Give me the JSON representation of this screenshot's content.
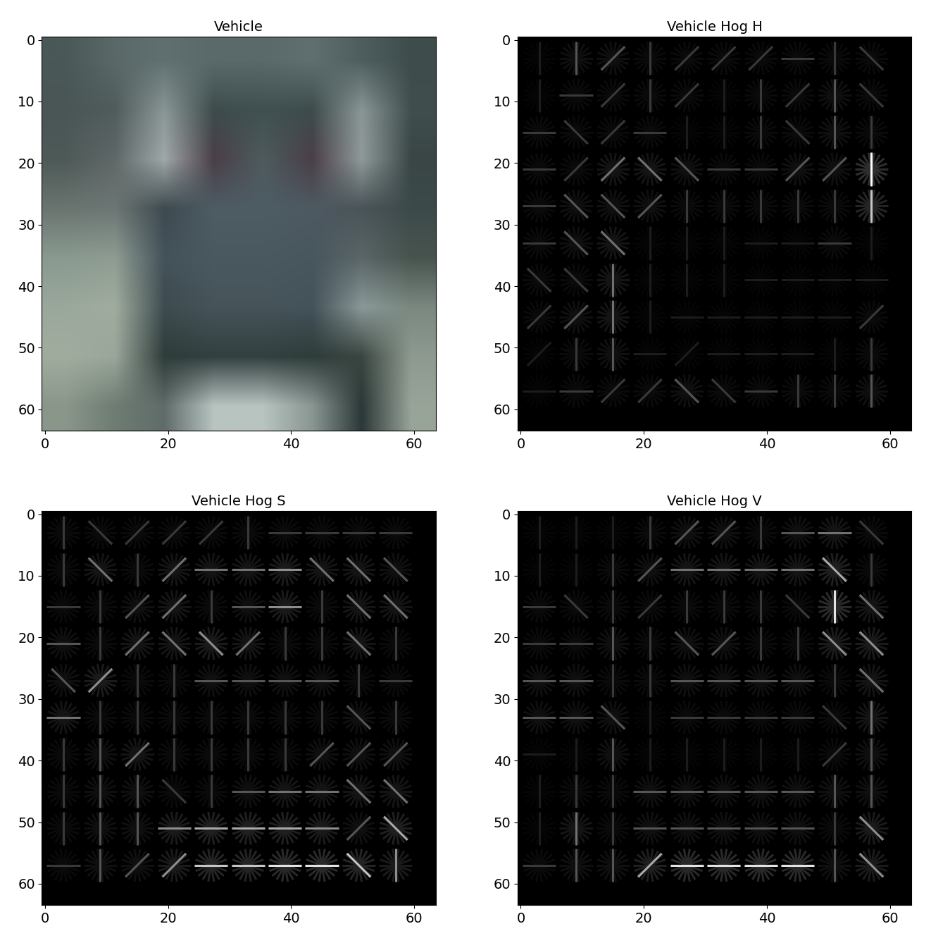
{
  "chart_data": [
    {
      "type": "image",
      "title": "Vehicle",
      "xlim": [
        -0.5,
        63.5
      ],
      "ylim": [
        63.5,
        -0.5
      ],
      "xticks": [
        0,
        20,
        40,
        60
      ],
      "yticks": [
        0,
        10,
        20,
        30,
        40,
        50,
        60
      ],
      "pixels": [
        [
          "#4a5858",
          "#5a6868",
          "#607070",
          "#5a6a6a",
          "#5a6a6a",
          "#607070",
          "#4e5e5e",
          "#3e4c4c"
        ],
        [
          "#4a5656",
          "#505c5c",
          "#8a9696",
          "#3e4c4c",
          "#405050",
          "#3e4c4c",
          "#8a9696",
          "#404e4e"
        ],
        [
          "#4e5a58",
          "#606868",
          "#a0a8a8",
          "#4a3e48",
          "#4e5c5e",
          "#4a3e48",
          "#909a9a",
          "#3a4646"
        ],
        [
          "#6a7470",
          "#6c7674",
          "#3e4a50",
          "#4e5c64",
          "#4e5c64",
          "#4e5a62",
          "#4a5458",
          "#3c4a4a"
        ],
        [
          "#8a9a90",
          "#8e9c92",
          "#44525a",
          "#4a5860",
          "#4a5860",
          "#48565e",
          "#5a6668",
          "#48544e"
        ],
        [
          "#9aa89c",
          "#a0ac9e",
          "#3e4c50",
          "#46545a",
          "#46545a",
          "#44525a",
          "#8a9898",
          "#7a8880"
        ],
        [
          "#a0ac9e",
          "#9aa69a",
          "#2e3c3a",
          "#324040",
          "#324040",
          "#2e3c3a",
          "#3a4640",
          "#8e9a90"
        ],
        [
          "#8a968a",
          "#6e7c72",
          "#606c6a",
          "#b8c4c0",
          "#b8c4c0",
          "#8a9692",
          "#2c3838",
          "#98a498"
        ]
      ]
    },
    {
      "type": "hog",
      "title": "Vehicle Hog H",
      "xlim": [
        -0.5,
        63.5
      ],
      "ylim": [
        63.5,
        -0.5
      ],
      "xticks": [
        0,
        20,
        40,
        60
      ],
      "yticks": [
        0,
        10,
        20,
        30,
        40,
        50,
        60
      ],
      "cell_size": 6,
      "vmin": 0,
      "vmax": 9,
      "angles": [
        [
          90,
          90,
          45,
          90,
          45,
          45,
          45,
          0,
          90,
          135
        ],
        [
          90,
          0,
          45,
          90,
          45,
          90,
          90,
          45,
          90,
          135
        ],
        [
          0,
          135,
          45,
          0,
          90,
          90,
          90,
          135,
          90,
          90
        ],
        [
          0,
          45,
          45,
          135,
          135,
          0,
          0,
          45,
          45,
          90
        ],
        [
          0,
          135,
          135,
          45,
          90,
          90,
          90,
          90,
          90,
          90
        ],
        [
          0,
          135,
          135,
          90,
          90,
          90,
          0,
          0,
          0,
          90
        ],
        [
          135,
          135,
          90,
          90,
          90,
          90,
          0,
          0,
          0,
          0
        ],
        [
          45,
          45,
          90,
          90,
          0,
          0,
          0,
          0,
          0,
          45
        ],
        [
          45,
          90,
          90,
          0,
          45,
          0,
          0,
          0,
          90,
          90
        ],
        [
          0,
          0,
          45,
          45,
          135,
          135,
          0,
          90,
          90,
          90
        ]
      ],
      "strength": [
        [
          1,
          3,
          3,
          2,
          2,
          2,
          2,
          2,
          2,
          2
        ],
        [
          1,
          2,
          2,
          2,
          2,
          1,
          2,
          2,
          3,
          2
        ],
        [
          2,
          2,
          2,
          2,
          1,
          1,
          2,
          2,
          3,
          2
        ],
        [
          2,
          2,
          4,
          4,
          3,
          2,
          2,
          3,
          3,
          9
        ],
        [
          2,
          3,
          3,
          3,
          2,
          2,
          2,
          2,
          2,
          7
        ],
        [
          2,
          3,
          4,
          1,
          1,
          1,
          1,
          1,
          2,
          1
        ],
        [
          2,
          2,
          4,
          1,
          1,
          1,
          1,
          1,
          1,
          1
        ],
        [
          2,
          3,
          4,
          1,
          1,
          1,
          1,
          1,
          1,
          2
        ],
        [
          1,
          2,
          3,
          1,
          1,
          1,
          1,
          1,
          1,
          2
        ],
        [
          1,
          2,
          2,
          2,
          3,
          2,
          2,
          2,
          2,
          3
        ]
      ]
    },
    {
      "type": "hog",
      "title": "Vehicle Hog S",
      "xlim": [
        -0.5,
        63.5
      ],
      "ylim": [
        63.5,
        -0.5
      ],
      "xticks": [
        0,
        20,
        40,
        60
      ],
      "yticks": [
        0,
        10,
        20,
        30,
        40,
        50,
        60
      ],
      "cell_size": 6,
      "vmin": 0,
      "vmax": 9,
      "angles": [
        [
          90,
          135,
          45,
          45,
          45,
          90,
          0,
          0,
          0,
          0
        ],
        [
          90,
          135,
          90,
          45,
          0,
          0,
          0,
          135,
          135,
          135
        ],
        [
          0,
          90,
          45,
          45,
          90,
          0,
          0,
          90,
          135,
          135
        ],
        [
          0,
          90,
          45,
          135,
          135,
          45,
          90,
          90,
          135,
          90
        ],
        [
          135,
          45,
          90,
          90,
          0,
          0,
          0,
          0,
          90,
          0
        ],
        [
          0,
          90,
          90,
          90,
          90,
          90,
          90,
          90,
          135,
          90
        ],
        [
          90,
          90,
          45,
          90,
          90,
          90,
          90,
          45,
          45,
          45
        ],
        [
          90,
          90,
          90,
          135,
          90,
          0,
          0,
          0,
          135,
          135
        ],
        [
          90,
          90,
          90,
          0,
          0,
          0,
          0,
          0,
          45,
          135
        ],
        [
          0,
          90,
          45,
          45,
          0,
          0,
          0,
          0,
          135,
          90
        ]
      ],
      "strength": [
        [
          2,
          2,
          2,
          2,
          2,
          2,
          2,
          2,
          2,
          2
        ],
        [
          2,
          4,
          2,
          4,
          4,
          4,
          5,
          4,
          4,
          3
        ],
        [
          2,
          2,
          3,
          4,
          2,
          3,
          5,
          2,
          4,
          4
        ],
        [
          3,
          2,
          4,
          4,
          5,
          4,
          2,
          2,
          4,
          2
        ],
        [
          3,
          5,
          2,
          2,
          3,
          3,
          3,
          3,
          2,
          2
        ],
        [
          4,
          2,
          2,
          2,
          2,
          2,
          2,
          2,
          3,
          2
        ],
        [
          2,
          3,
          4,
          2,
          2,
          2,
          2,
          3,
          3,
          3
        ],
        [
          2,
          3,
          3,
          2,
          2,
          3,
          4,
          4,
          4,
          4
        ],
        [
          2,
          3,
          3,
          5,
          6,
          6,
          6,
          5,
          3,
          6
        ],
        [
          2,
          3,
          3,
          5,
          7,
          7,
          8,
          8,
          7,
          5
        ]
      ]
    },
    {
      "type": "hog",
      "title": "Vehicle Hog V",
      "xlim": [
        -0.5,
        63.5
      ],
      "ylim": [
        63.5,
        -0.5
      ],
      "xticks": [
        0,
        20,
        40,
        60
      ],
      "yticks": [
        0,
        10,
        20,
        30,
        40,
        50,
        60
      ],
      "cell_size": 6,
      "vmin": 0,
      "vmax": 9,
      "angles": [
        [
          90,
          90,
          90,
          90,
          45,
          45,
          90,
          0,
          0,
          135
        ],
        [
          90,
          90,
          90,
          45,
          0,
          0,
          0,
          0,
          135,
          90
        ],
        [
          0,
          135,
          90,
          45,
          90,
          90,
          90,
          135,
          90,
          135
        ],
        [
          0,
          0,
          90,
          90,
          135,
          45,
          90,
          90,
          135,
          135
        ],
        [
          0,
          0,
          90,
          90,
          0,
          0,
          0,
          0,
          90,
          135
        ],
        [
          0,
          0,
          135,
          90,
          0,
          0,
          0,
          0,
          135,
          90
        ],
        [
          0,
          90,
          90,
          90,
          90,
          90,
          90,
          90,
          45,
          90
        ],
        [
          90,
          90,
          90,
          0,
          0,
          0,
          0,
          0,
          90,
          90
        ],
        [
          90,
          90,
          90,
          0,
          0,
          0,
          0,
          0,
          90,
          135
        ],
        [
          0,
          90,
          90,
          45,
          0,
          0,
          0,
          0,
          90,
          135
        ]
      ],
      "strength": [
        [
          1,
          1,
          1,
          2,
          3,
          3,
          2,
          3,
          4,
          2
        ],
        [
          1,
          1,
          2,
          3,
          4,
          4,
          4,
          4,
          6,
          2
        ],
        [
          2,
          2,
          2,
          2,
          2,
          2,
          2,
          2,
          8,
          4
        ],
        [
          2,
          2,
          3,
          2,
          3,
          3,
          2,
          2,
          5,
          5
        ],
        [
          3,
          3,
          2,
          2,
          3,
          3,
          3,
          3,
          2,
          4
        ],
        [
          3,
          3,
          3,
          1,
          2,
          2,
          2,
          2,
          2,
          4
        ],
        [
          1,
          1,
          3,
          1,
          1,
          1,
          1,
          1,
          2,
          3
        ],
        [
          1,
          2,
          2,
          3,
          3,
          3,
          3,
          3,
          3,
          3
        ],
        [
          1,
          4,
          2,
          3,
          3,
          3,
          3,
          3,
          2,
          5
        ],
        [
          2,
          3,
          3,
          6,
          8,
          8,
          8,
          8,
          3,
          5
        ]
      ]
    }
  ]
}
